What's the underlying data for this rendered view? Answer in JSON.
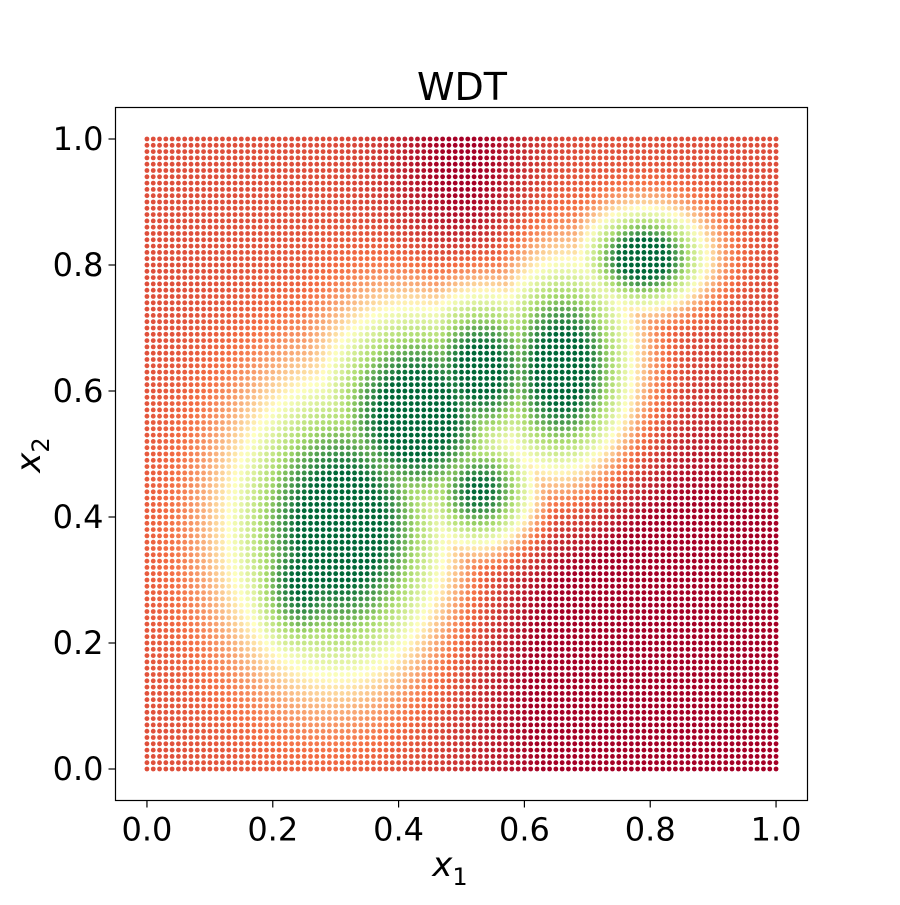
{
  "chart_data": {
    "type": "scatter",
    "title": "WDT",
    "xlabel": "x",
    "xlabel_sub": "1",
    "ylabel": "x",
    "ylabel_sub": "2",
    "xlim": [
      -0.05,
      1.05
    ],
    "ylim": [
      -0.05,
      1.05
    ],
    "xticks": [
      0.0,
      0.2,
      0.4,
      0.6,
      0.8,
      1.0
    ],
    "yticks": [
      0.0,
      0.2,
      0.4,
      0.6,
      0.8,
      1.0
    ],
    "xtick_labels": [
      "0.0",
      "0.2",
      "0.4",
      "0.6",
      "0.8",
      "1.0"
    ],
    "ytick_labels": [
      "0.0",
      "0.2",
      "0.4",
      "0.6",
      "0.8",
      "1.0"
    ],
    "grid": false,
    "colormap": "RdYlGn",
    "grid_points": {
      "x_start": 0.0,
      "x_end": 1.0,
      "y_start": 0.0,
      "y_end": 1.0,
      "n_x": 101,
      "n_y": 101
    },
    "high_value_regions": [
      {
        "x": 0.31,
        "y": 0.38,
        "sx": 0.09,
        "sy": 0.12,
        "weight": 1.0
      },
      {
        "x": 0.43,
        "y": 0.56,
        "sx": 0.08,
        "sy": 0.09,
        "weight": 1.0
      },
      {
        "x": 0.53,
        "y": 0.63,
        "sx": 0.06,
        "sy": 0.07,
        "weight": 0.9
      },
      {
        "x": 0.66,
        "y": 0.63,
        "sx": 0.06,
        "sy": 0.09,
        "weight": 1.0
      },
      {
        "x": 0.53,
        "y": 0.44,
        "sx": 0.05,
        "sy": 0.05,
        "weight": 0.85
      },
      {
        "x": 0.79,
        "y": 0.81,
        "sx": 0.05,
        "sy": 0.04,
        "weight": 1.0
      },
      {
        "x": 0.25,
        "y": 0.3,
        "sx": 0.05,
        "sy": 0.07,
        "weight": 0.8
      }
    ],
    "low_value_regions": [
      {
        "x": 0.85,
        "y": 0.15,
        "sx": 0.22,
        "sy": 0.25,
        "weight": 0.35
      },
      {
        "x": 0.5,
        "y": 0.95,
        "sx": 0.08,
        "sy": 0.12,
        "weight": 0.2
      }
    ],
    "colors": {
      "low": "#a50026",
      "mid_low": "#f46d43",
      "mid": "#ffffbf",
      "mid_high": "#a6d96a",
      "high": "#006837",
      "background": "#ffffff",
      "axes": "#000000"
    }
  }
}
